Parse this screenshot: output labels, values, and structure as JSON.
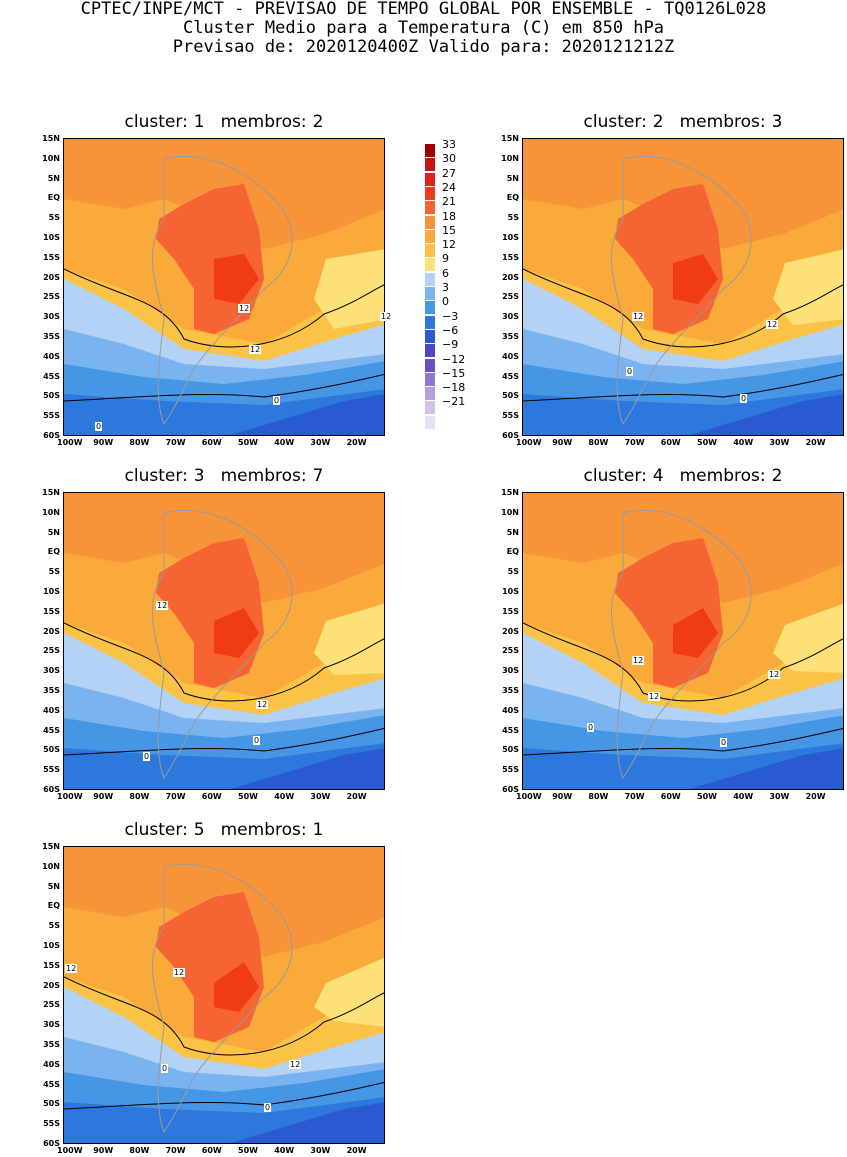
{
  "header": {
    "line1": "CPTEC/INPE/MCT - PREVISAO DE TEMPO GLOBAL POR ENSEMBLE - TQ0126L028",
    "line2": "Cluster Medio para a Temperatura (C) em 850 hPa",
    "line3": "Previsao de: 2020120400Z   Valido para: 2020121212Z"
  },
  "panels": [
    {
      "cluster_label": "cluster:",
      "cluster": "1",
      "membros_label": "membros:",
      "membros": "2",
      "contours": [
        "12",
        "12",
        "12",
        "0",
        "0"
      ]
    },
    {
      "cluster_label": "cluster:",
      "cluster": "2",
      "membros_label": "membros:",
      "membros": "3",
      "contours": [
        "12",
        "12",
        "0",
        "0"
      ]
    },
    {
      "cluster_label": "cluster:",
      "cluster": "3",
      "membros_label": "membros:",
      "membros": "7",
      "contours": [
        "12",
        "12",
        "0",
        "0"
      ]
    },
    {
      "cluster_label": "cluster:",
      "cluster": "4",
      "membros_label": "membros:",
      "membros": "2",
      "contours": [
        "12",
        "12",
        "12",
        "0",
        "0"
      ]
    },
    {
      "cluster_label": "cluster:",
      "cluster": "5",
      "membros_label": "membros:",
      "membros": "1",
      "contours": [
        "12",
        "12",
        "12",
        "0",
        "0"
      ]
    }
  ],
  "y_ticks": [
    "15N",
    "10N",
    "5N",
    "EQ",
    "5S",
    "10S",
    "15S",
    "20S",
    "25S",
    "30S",
    "35S",
    "40S",
    "45S",
    "50S",
    "55S",
    "60S"
  ],
  "x_ticks": [
    "100W",
    "90W",
    "80W",
    "70W",
    "60W",
    "50W",
    "40W",
    "30W",
    "20W"
  ],
  "legend": {
    "values": [
      "33",
      "30",
      "27",
      "24",
      "21",
      "18",
      "15",
      "12",
      "9",
      "6",
      "3",
      "0",
      "-3",
      "-6",
      "-9",
      "-12",
      "-15",
      "-18",
      "-21"
    ],
    "colors": [
      "#a00000",
      "#c81414",
      "#e61e1e",
      "#f03c14",
      "#f56432",
      "#f7943a",
      "#f9aa3a",
      "#fbc346",
      "#fde178",
      "#b4d2f5",
      "#7ab4f0",
      "#4696e6",
      "#2d78dc",
      "#2a5ad2",
      "#4b46c8",
      "#6450c8",
      "#8c78d2",
      "#b4a0e1",
      "#d2c3eb",
      "#e8e0f5"
    ]
  }
}
